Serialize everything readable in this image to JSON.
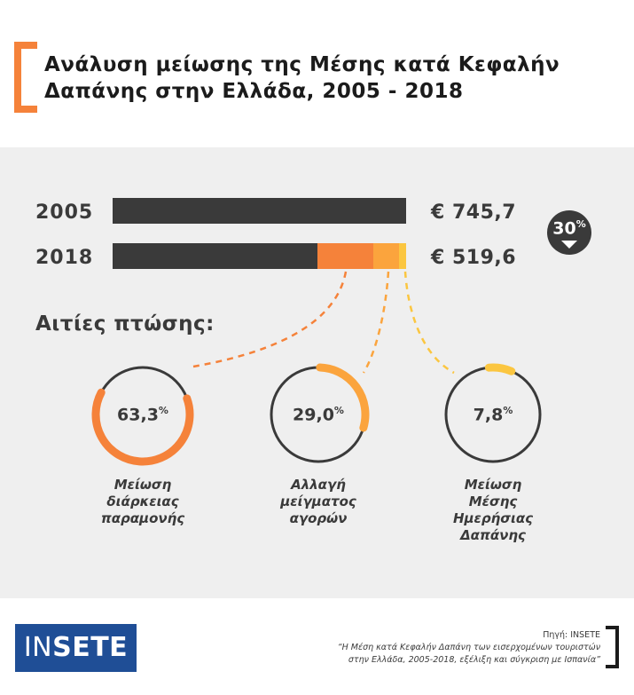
{
  "header": {
    "title_line1": "Ανάλυση μείωσης της Μέσης κατά Κεφαλήν",
    "title_line2": "Δαπάνης στην Ελλάδα, 2005 - 2018"
  },
  "badge": {
    "value": "30",
    "unit": "%"
  },
  "colors": {
    "dark": "#3a3a3a",
    "orange": "#f5823a",
    "amber": "#fba43d",
    "yellow": "#fbc640",
    "ring": "#3a3a3a"
  },
  "chart_data": {
    "type": "bar",
    "categories": [
      "2005",
      "2018"
    ],
    "values": [
      745.7,
      519.6
    ],
    "value_labels": [
      "€ 745,7",
      "€ 519,6"
    ],
    "decline_percent": 30,
    "causes_title": "Αιτίες πτώσης:",
    "causes": [
      {
        "percent_label": "63,3",
        "percent": 63.3,
        "label_lines": [
          "Μείωση",
          "διάρκειας",
          "παραμονής"
        ]
      },
      {
        "percent_label": "29,0",
        "percent": 29.0,
        "label_lines": [
          "Αλλαγή",
          "μείγματος",
          "αγορών"
        ]
      },
      {
        "percent_label": "7,8",
        "percent": 7.8,
        "label_lines": [
          "Μείωση",
          "Μέσης",
          "Ημερήσιας",
          "Δαπάνης"
        ]
      }
    ]
  },
  "footer": {
    "logo_part1": "IN",
    "logo_part2": "SETE",
    "source_label": "Πηγή: INSETE",
    "source_line1": "“Η Μέση κατά Κεφαλήν Δαπάνη των εισερχομένων τουριστών",
    "source_line2": "στην Ελλάδα, 2005-2018, εξέλιξη και σύγκριση με Ισπανία”"
  }
}
